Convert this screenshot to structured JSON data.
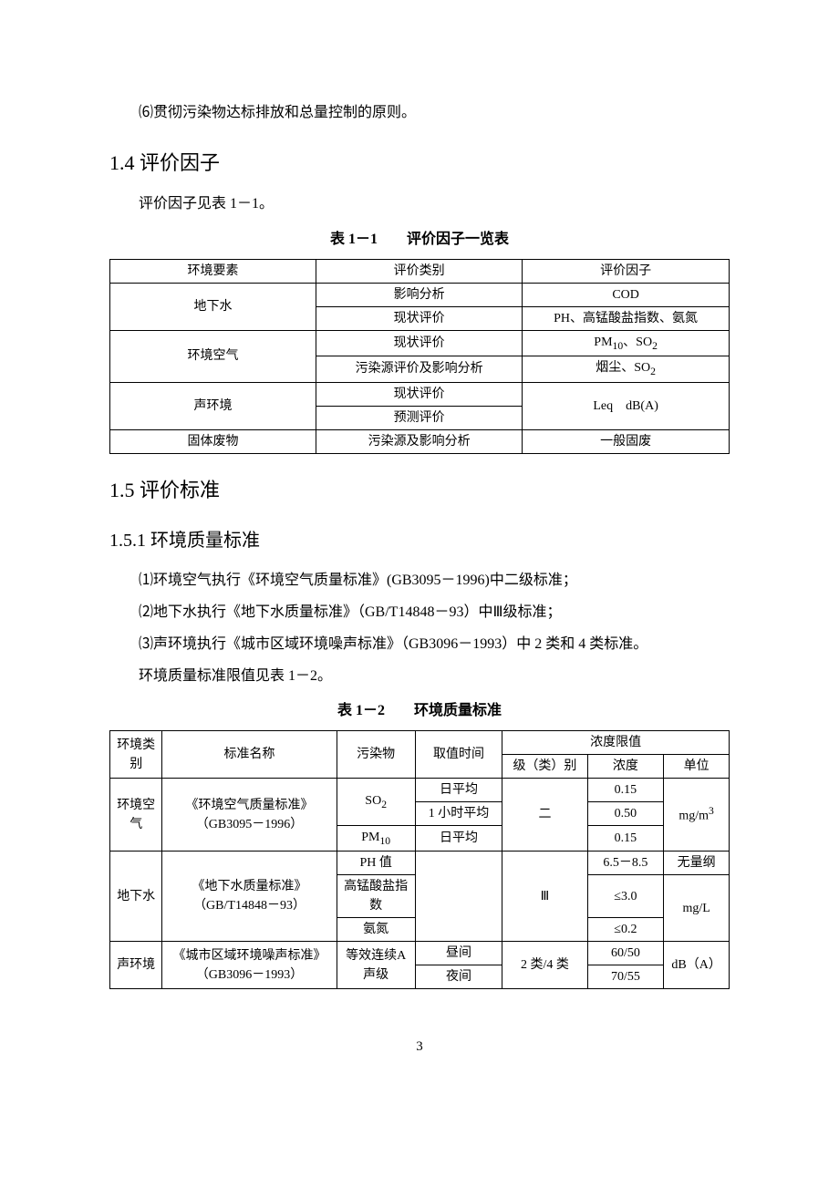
{
  "intro_para": "⑹贯彻污染物达标排放和总量控制的原则。",
  "section_1_4": {
    "heading": "1.4 评价因子",
    "para": "评价因子见表 1－1。",
    "table_caption_num": "表 1－1",
    "table_caption_title": "评价因子一览表",
    "headers": [
      "环境要素",
      "评价类别",
      "评价因子"
    ],
    "rows": [
      {
        "element": "地下水",
        "rowspan": 2,
        "category": "影响分析",
        "factor": "COD"
      },
      {
        "category": "现状评价",
        "factor": "PH、高锰酸盐指数、氨氮"
      },
      {
        "element": "环境空气",
        "rowspan": 2,
        "category": "现状评价",
        "factor_html": "PM<sub>10</sub>、SO<sub>2</sub>"
      },
      {
        "category": "污染源评价及影响分析",
        "factor_html": "烟尘、SO<sub>2</sub>"
      },
      {
        "element": "声环境",
        "rowspan": 2,
        "category": "现状评价",
        "factor": "Leq　dB(A)",
        "factor_rowspan": 2
      },
      {
        "category": "预测评价"
      },
      {
        "element": "固体废物",
        "rowspan": 1,
        "category": "污染源及影响分析",
        "factor": "一般固废"
      }
    ]
  },
  "section_1_5": {
    "heading": "1.5 评价标准",
    "sub_heading": "1.5.1 环境质量标准",
    "items": [
      "⑴环境空气执行《环境空气质量标准》(GB3095－1996)中二级标准；",
      "⑵地下水执行《地下水质量标准》（GB/T14848－93）中Ⅲ级标准；",
      "⑶声环境执行《城市区域环境噪声标准》（GB3096－1993）中 2 类和 4 类标准。"
    ],
    "post_para": "环境质量标准限值见表 1－2。",
    "table_caption_num": "表 1－2",
    "table_caption_title": "环境质量标准",
    "t2_headers": {
      "col1": "环境类别",
      "col2": "标准名称",
      "col3": "污染物",
      "col4": "取值时间",
      "col5": "浓度限值",
      "col5a": "级（类）别",
      "col5b": "浓度",
      "col5c": "单位"
    },
    "t2_col_widths": [
      "48px",
      "160px",
      "72px",
      "80px",
      "78px",
      "70px",
      "60px"
    ],
    "t2_rows": {
      "air": {
        "category": "环境空气",
        "standard": "《环境空气质量标准》（GB3095－1996）",
        "class": "二",
        "unit_html": "mg/m<sup>3</sup>",
        "r1": {
          "pollutant_html": "SO<sub>2</sub>",
          "time": "日平均",
          "conc": "0.15"
        },
        "r2": {
          "time": "1 小时平均",
          "conc": "0.50"
        },
        "r3": {
          "pollutant_html": "PM<sub>10</sub>",
          "time": "日平均",
          "conc": "0.15"
        }
      },
      "water": {
        "category": "地下水",
        "standard": "《地下水质量标准》（GB/T14848－93）",
        "class": "Ⅲ",
        "r1": {
          "pollutant": "PH 值",
          "conc": "6.5－8.5",
          "unit": "无量纲"
        },
        "r2": {
          "pollutant": "高锰酸盐指数",
          "conc": "≤3.0",
          "unit": "mg/L"
        },
        "r3": {
          "pollutant": "氨氮",
          "conc": "≤0.2"
        }
      },
      "noise": {
        "category": "声环境",
        "standard": "《城市区域环境噪声标准》（GB3096－1993）",
        "pollutant": "等效连续A 声级",
        "class": "2 类/4 类",
        "unit": "dB（A）",
        "r1": {
          "time": "昼间",
          "conc": "60/50"
        },
        "r2": {
          "time": "夜间",
          "conc": "70/55"
        }
      }
    }
  },
  "page_number": "3"
}
